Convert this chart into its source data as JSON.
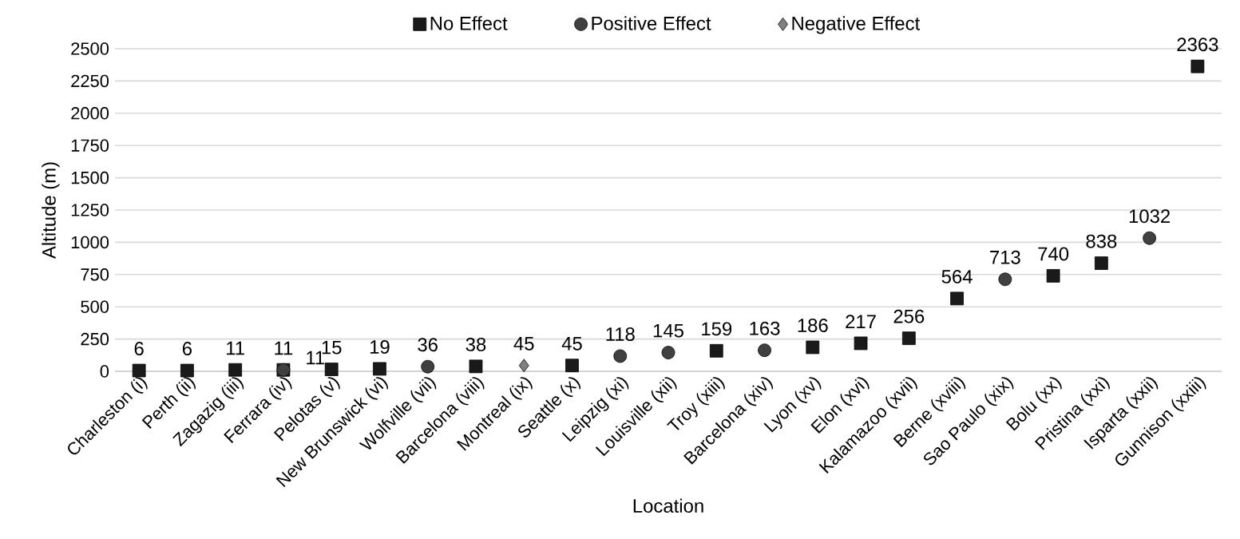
{
  "chart_data": {
    "type": "scatter",
    "xlabel": "Location",
    "ylabel": "Altitude (m)",
    "categories": [
      "Charleston (i)",
      "Perth (ii)",
      "Zagazig (iii)",
      "Ferrara (iv)",
      "Pelotas (v)",
      "New Brunswick (vi)",
      "Wolfville (vii)",
      "Barcelona (viii)",
      "Montreal (ix)",
      "Seattle (x)",
      "Leipzig (xi)",
      "Louisville (xii)",
      "Troy (xiii)",
      "Barcelona (xiv)",
      "Lyon (xv)",
      "Elon (xvi)",
      "Kalamazoo (xvii)",
      "Berne (xviii)",
      "Sao Paulo (xix)",
      "Bolu (xx)",
      "Pristina (xxi)",
      "Isparta (xxii)",
      "Gunnison (xxiii)"
    ],
    "series": [
      {
        "name": "No Effect",
        "color": "#1a1a1a",
        "marker": "square",
        "values": [
          6,
          6,
          11,
          11,
          15,
          19,
          null,
          38,
          null,
          45,
          null,
          null,
          159,
          null,
          186,
          217,
          256,
          564,
          null,
          740,
          838,
          null,
          2363
        ]
      },
      {
        "name": "Positive Effect",
        "color": "#404040",
        "marker": "circle",
        "values": [
          null,
          null,
          null,
          11,
          null,
          null,
          36,
          null,
          null,
          null,
          118,
          145,
          null,
          163,
          null,
          null,
          null,
          null,
          713,
          null,
          null,
          1032,
          null
        ]
      },
      {
        "name": "Negative Effect",
        "color": "#808080",
        "marker": "diamond",
        "values": [
          null,
          null,
          null,
          null,
          null,
          null,
          null,
          null,
          45,
          null,
          null,
          null,
          null,
          null,
          null,
          null,
          null,
          null,
          null,
          null,
          null,
          null,
          null
        ]
      }
    ],
    "ylim": [
      0,
      2500
    ],
    "yticks": [
      0,
      250,
      500,
      750,
      1000,
      1250,
      1500,
      1750,
      2000,
      2250,
      2500
    ],
    "grid": "y",
    "legend": "top",
    "data_labels": true
  }
}
